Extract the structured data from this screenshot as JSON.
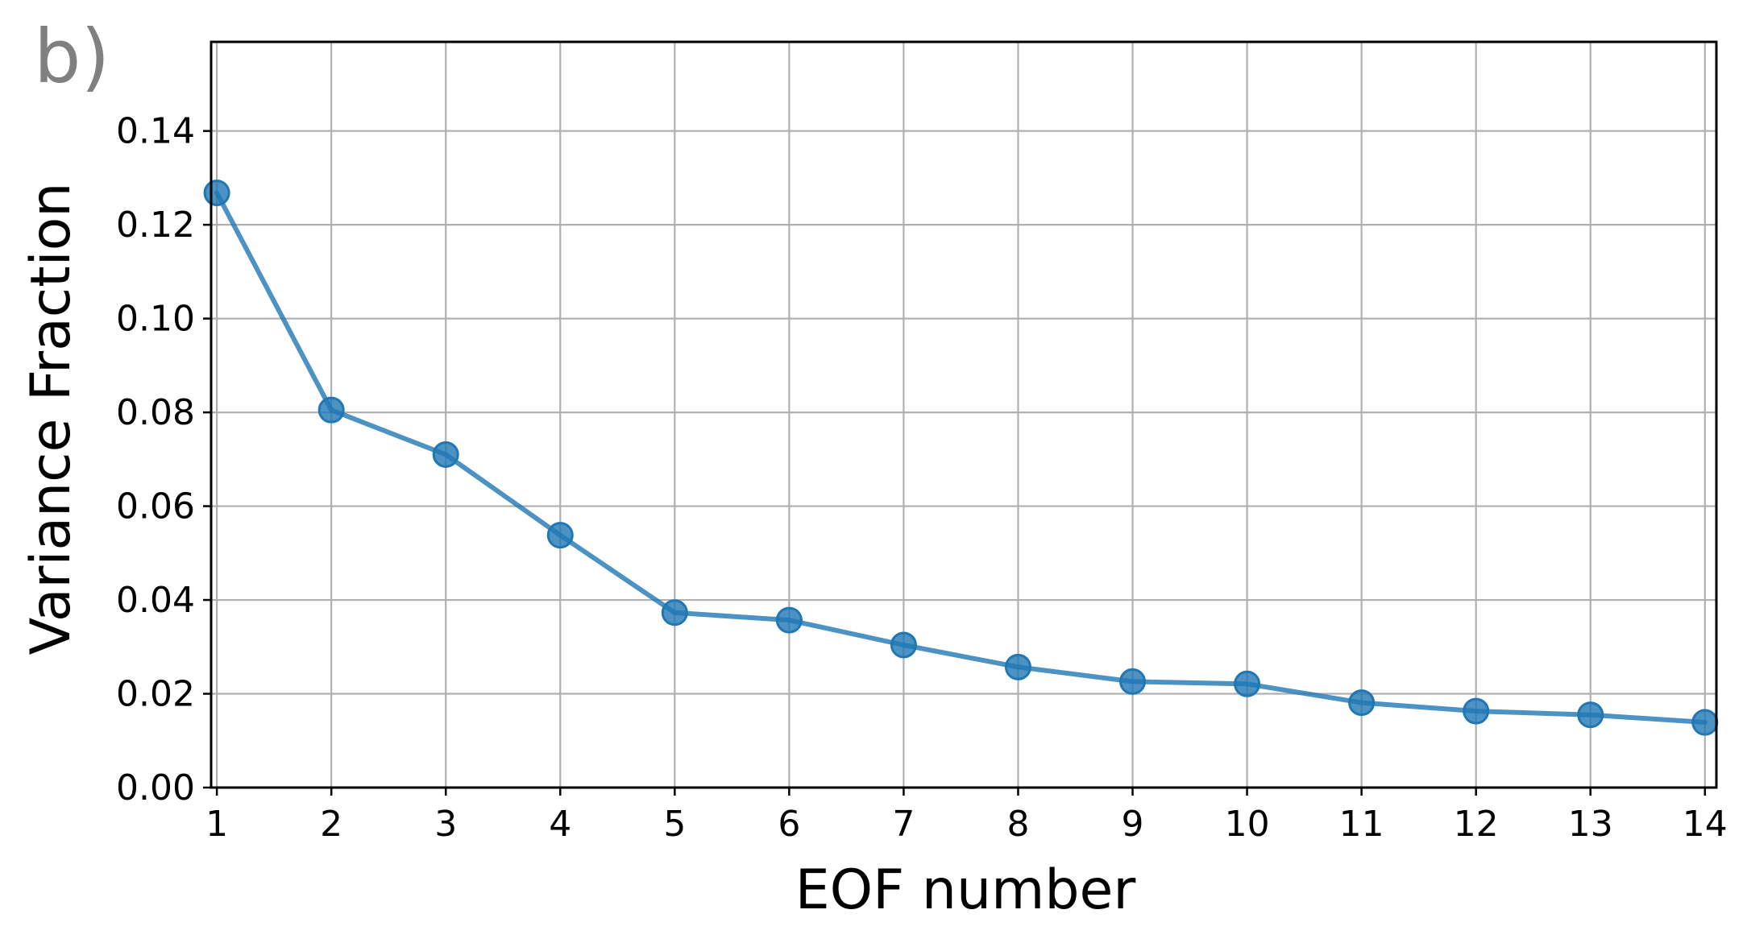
{
  "panel_label": "b)",
  "chart_data": {
    "type": "line",
    "xlabel": "EOF number",
    "ylabel": "Variance Fraction",
    "xlim": [
      0.95,
      14.1
    ],
    "ylim": [
      0.0,
      0.159
    ],
    "x_ticks": [
      1,
      2,
      3,
      4,
      5,
      6,
      7,
      8,
      9,
      10,
      11,
      12,
      13,
      14
    ],
    "y_ticks": [
      0.0,
      0.02,
      0.04,
      0.06,
      0.08,
      0.1,
      0.12,
      0.14
    ],
    "y_tick_labels": [
      "0.00",
      "0.02",
      "0.04",
      "0.06",
      "0.08",
      "0.10",
      "0.12",
      "0.14"
    ],
    "grid": true,
    "series": [
      {
        "color": "#1f77b4",
        "x": [
          1,
          2,
          3,
          4,
          5,
          6,
          7,
          8,
          9,
          10,
          11,
          12,
          13,
          14
        ],
        "y": [
          0.1268,
          0.0805,
          0.071,
          0.0538,
          0.0373,
          0.0357,
          0.0304,
          0.0257,
          0.0226,
          0.0221,
          0.0181,
          0.0163,
          0.0155,
          0.0139
        ]
      }
    ]
  }
}
